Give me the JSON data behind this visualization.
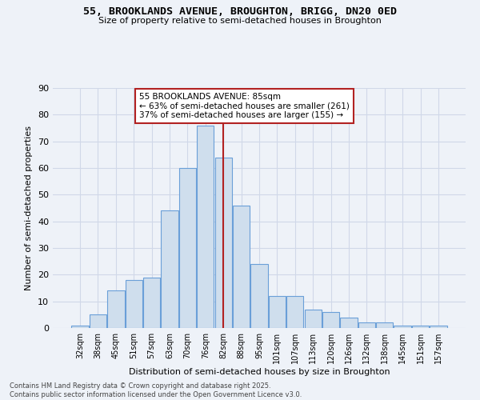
{
  "title_line1": "55, BROOKLANDS AVENUE, BROUGHTON, BRIGG, DN20 0ED",
  "title_line2": "Size of property relative to semi-detached houses in Broughton",
  "xlabel": "Distribution of semi-detached houses by size in Broughton",
  "ylabel": "Number of semi-detached properties",
  "categories": [
    "32sqm",
    "38sqm",
    "45sqm",
    "51sqm",
    "57sqm",
    "63sqm",
    "70sqm",
    "76sqm",
    "82sqm",
    "88sqm",
    "95sqm",
    "101sqm",
    "107sqm",
    "113sqm",
    "120sqm",
    "126sqm",
    "132sqm",
    "138sqm",
    "145sqm",
    "151sqm",
    "157sqm"
  ],
  "values": [
    1,
    5,
    14,
    18,
    19,
    44,
    60,
    76,
    64,
    46,
    24,
    12,
    12,
    7,
    6,
    4,
    2,
    2,
    1,
    1,
    1
  ],
  "bar_color": "#cfdeed",
  "bar_edge_color": "#6a9fd8",
  "reference_line_x": 8,
  "reference_line_color": "#b22222",
  "annotation_title": "55 BROOKLANDS AVENUE: 85sqm",
  "annotation_line1": "← 63% of semi-detached houses are smaller (261)",
  "annotation_line2": "37% of semi-detached houses are larger (155) →",
  "annotation_box_color": "white",
  "annotation_box_edge": "#b22222",
  "ylim": [
    0,
    90
  ],
  "yticks": [
    0,
    10,
    20,
    30,
    40,
    50,
    60,
    70,
    80,
    90
  ],
  "grid_color": "#d0d8e8",
  "bg_color": "#eef2f8",
  "footer_line1": "Contains HM Land Registry data © Crown copyright and database right 2025.",
  "footer_line2": "Contains public sector information licensed under the Open Government Licence v3.0."
}
